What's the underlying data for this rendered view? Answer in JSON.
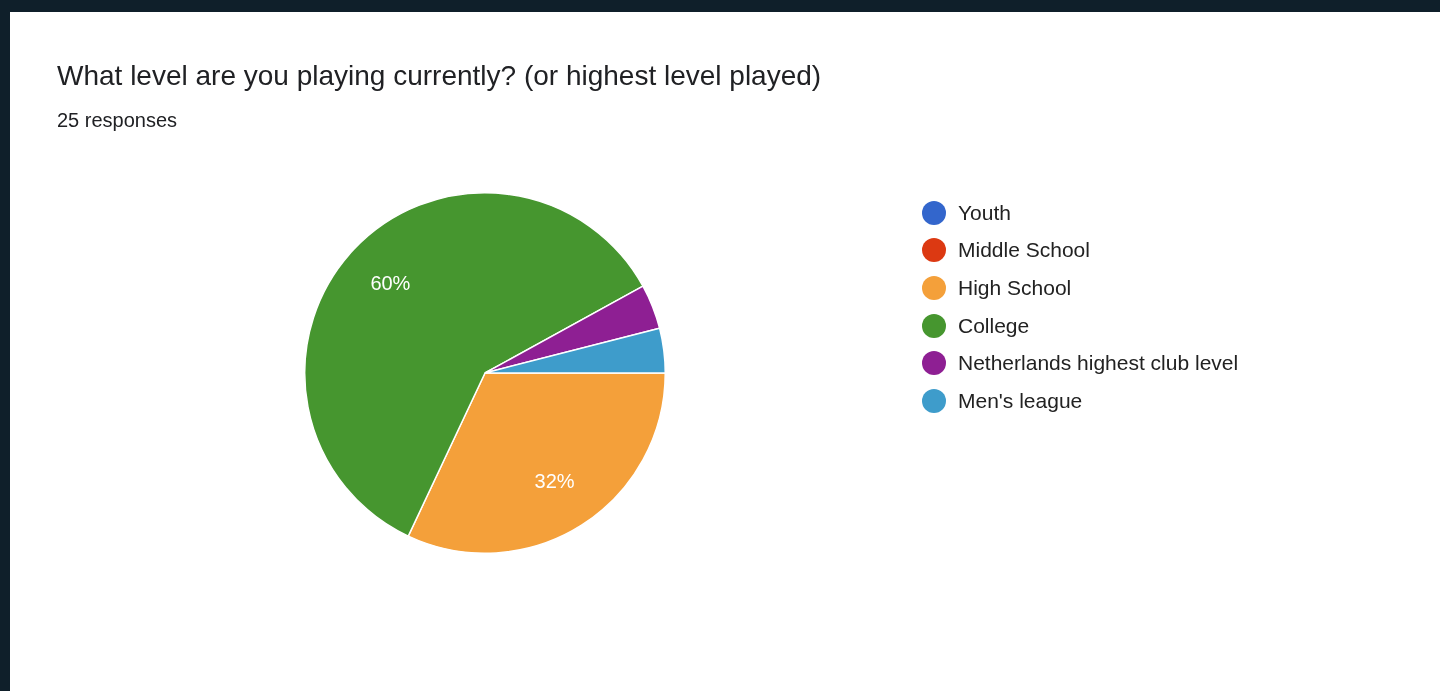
{
  "chart_data": {
    "type": "pie",
    "title": "What level are you playing currently? (or highest level played)",
    "subtitle": "25 responses",
    "categories": [
      "Youth",
      "Middle School",
      "High School",
      "College",
      "Netherlands highest club level",
      "Men's league"
    ],
    "values": [
      0,
      0,
      32,
      60,
      4,
      4
    ],
    "colors": [
      "#3366cc",
      "#dc3912",
      "#f4a03a",
      "#46962f",
      "#8e1f93",
      "#3e9ccb"
    ],
    "value_labels": [
      null,
      null,
      "32%",
      "60%",
      null,
      null
    ],
    "legend": "right"
  }
}
